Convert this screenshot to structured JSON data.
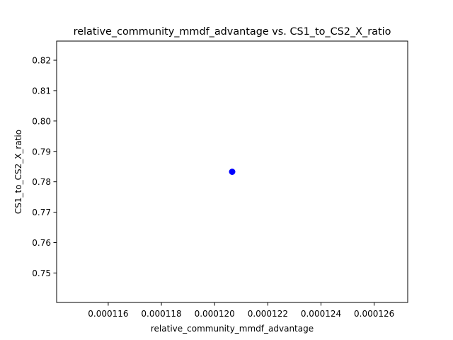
{
  "chart_data": {
    "type": "scatter",
    "title": "relative_community_mmdf_advantage vs. CS1_to_CS2_X_ratio",
    "xlabel": "relative_community_mmdf_advantage",
    "ylabel": "CS1_to_CS2_X_ratio",
    "xlim": [
      0.00011406,
      0.00012726
    ],
    "ylim": [
      0.7403,
      0.8263
    ],
    "xticks": [
      0.000116,
      0.000118,
      0.00012,
      0.000122,
      0.000124,
      0.000126
    ],
    "xtick_labels": [
      "0.000116",
      "0.000118",
      "0.000120",
      "0.000122",
      "0.000124",
      "0.000126"
    ],
    "yticks": [
      0.75,
      0.76,
      0.77,
      0.78,
      0.79,
      0.8,
      0.81,
      0.82
    ],
    "ytick_labels": [
      "0.75",
      "0.76",
      "0.77",
      "0.78",
      "0.79",
      "0.80",
      "0.81",
      "0.82"
    ],
    "grid": false,
    "points": [
      {
        "x": 0.00012066,
        "y": 0.7833
      }
    ],
    "colors": {
      "point": "#0000ff",
      "axes": "#000000",
      "background": "#ffffff"
    }
  }
}
